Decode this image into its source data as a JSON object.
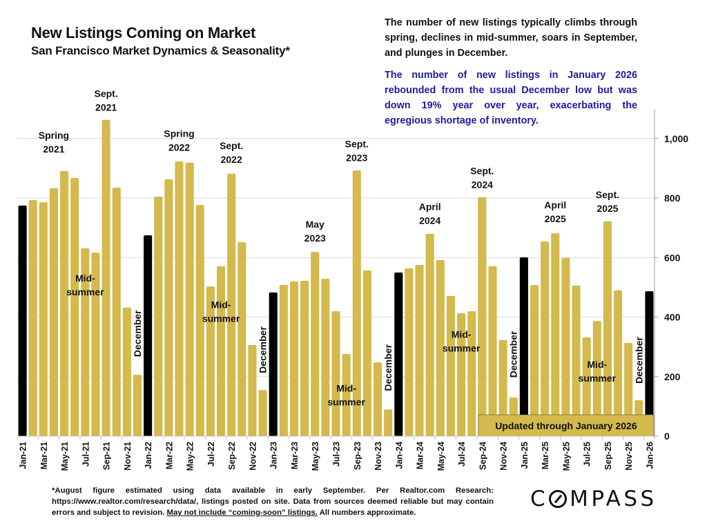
{
  "header": {
    "title": "New Listings Coming on Market",
    "subtitle": "San Francisco Market Dynamics & Seasonality*"
  },
  "notes": {
    "general": "The number of new listings typically climbs through spring, declines in mid-summer, soars in September, and plunges in December.",
    "highlight": "The number of new listings in January 2026 rebounded from the usual December low but was down 19% year over year, exacerbating the egregious shortage of inventory.",
    "highlight_color": "#1c1c9e"
  },
  "footer": {
    "text_before": "*August figure estimated using data available in early September. Per Realtor.com Research: https://www.realtor.com/research/data/, listings posted on site. Data from sources deemed reliable but may contain errors and subject to revision. ",
    "underlined": "May not include “coming-soon” listings.",
    "text_after": " All numbers approximate."
  },
  "logo": {
    "text_before": "C",
    "text_after": "MPASS"
  },
  "chart_data": {
    "type": "bar",
    "title": "New Listings Coming on Market",
    "subtitle": "San Francisco Market Dynamics & Seasonality*",
    "xlabel": "",
    "ylabel": "",
    "ylim": [
      0,
      1100
    ],
    "yticks": [
      0,
      200,
      400,
      600,
      800,
      1000
    ],
    "ytick_labels": [
      "0",
      "200",
      "400",
      "600",
      "800",
      "1,000"
    ],
    "y_axis_side": "right",
    "grid": true,
    "colors": {
      "default": "#d4b94c",
      "january": "#000000"
    },
    "categories": [
      "Jan-21",
      "Feb-21",
      "Mar-21",
      "Apr-21",
      "May-21",
      "Jun-21",
      "Jul-21",
      "Aug-21",
      "Sep-21",
      "Oct-21",
      "Nov-21",
      "Dec-21",
      "Jan-22",
      "Feb-22",
      "Mar-22",
      "Apr-22",
      "May-22",
      "Jun-22",
      "Jul-22",
      "Aug-22",
      "Sep-22",
      "Oct-22",
      "Nov-22",
      "Dec-22",
      "Jan-23",
      "Feb-23",
      "Mar-23",
      "Apr-23",
      "May-23",
      "Jun-23",
      "Jul-23",
      "Aug-23",
      "Sep-23",
      "Oct-23",
      "Nov-23",
      "Dec-23",
      "Jan-24",
      "Feb-24",
      "Mar-24",
      "Apr-24",
      "May-24",
      "Jun-24",
      "Jul-24",
      "Aug-24",
      "Sep-24",
      "Oct-24",
      "Nov-24",
      "Dec-24",
      "Jan-25",
      "Feb-25",
      "Mar-25",
      "Apr-25",
      "May-25",
      "Jun-25",
      "Jul-25",
      "Aug-25",
      "Sep-25",
      "Oct-25",
      "Nov-25",
      "Dec-25",
      "Jan-26"
    ],
    "values": [
      775,
      793,
      786,
      833,
      891,
      868,
      631,
      617,
      1063,
      835,
      432,
      206,
      675,
      805,
      863,
      923,
      919,
      777,
      503,
      571,
      882,
      652,
      306,
      155,
      483,
      508,
      520,
      522,
      619,
      529,
      420,
      276,
      893,
      557,
      248,
      90,
      550,
      564,
      575,
      680,
      592,
      471,
      413,
      420,
      803,
      571,
      323,
      130,
      601,
      508,
      654,
      682,
      599,
      506,
      332,
      387,
      722,
      490,
      313,
      121,
      487
    ],
    "tick_label_every": 2,
    "annotations": [
      {
        "text": [
          "Spring",
          "2021"
        ],
        "at": "Apr-21",
        "value": 1000,
        "rotate": false
      },
      {
        "text": [
          "Sept.",
          "2021"
        ],
        "at": "Sep-21",
        "value": 1140,
        "rotate": false
      },
      {
        "text": [
          "Mid-",
          "summer"
        ],
        "at": "Jul-21",
        "value": 520,
        "rotate": false
      },
      {
        "text": [
          "December"
        ],
        "at": "Dec-21",
        "value": 345,
        "rotate": true
      },
      {
        "text": [
          "Spring",
          "2022"
        ],
        "at": "Apr-22",
        "value": 1005,
        "rotate": false
      },
      {
        "text": [
          "Sept.",
          "2022"
        ],
        "at": "Sep-22",
        "value": 965,
        "rotate": false
      },
      {
        "text": [
          "Mid-",
          "summer"
        ],
        "at": "Aug-22",
        "value": 430,
        "rotate": false
      },
      {
        "text": [
          "December"
        ],
        "at": "Dec-22",
        "value": 290,
        "rotate": true
      },
      {
        "text": [
          "May",
          "2023"
        ],
        "at": "May-23",
        "value": 700,
        "rotate": false
      },
      {
        "text": [
          "Sept.",
          "2023"
        ],
        "at": "Sep-23",
        "value": 970,
        "rotate": false
      },
      {
        "text": [
          "Mid-",
          "summer"
        ],
        "at": "Aug-23",
        "value": 150,
        "rotate": false
      },
      {
        "text": [
          "December"
        ],
        "at": "Dec-23",
        "value": 230,
        "rotate": true
      },
      {
        "text": [
          "April",
          "2024"
        ],
        "at": "Apr-24",
        "value": 760,
        "rotate": false
      },
      {
        "text": [
          "Sept.",
          "2024"
        ],
        "at": "Sep-24",
        "value": 880,
        "rotate": false
      },
      {
        "text": [
          "Mid-",
          "summer"
        ],
        "at": "Jul-24",
        "value": 330,
        "rotate": false
      },
      {
        "text": [
          "December"
        ],
        "at": "Dec-24",
        "value": 275,
        "rotate": true
      },
      {
        "text": [
          "April",
          "2025"
        ],
        "at": "Apr-25",
        "value": 765,
        "rotate": false
      },
      {
        "text": [
          "Sept.",
          "2025"
        ],
        "at": "Sep-25",
        "value": 800,
        "rotate": false
      },
      {
        "text": [
          "Mid-",
          "summer"
        ],
        "at": "Aug-25",
        "value": 230,
        "rotate": false
      },
      {
        "text": [
          "December"
        ],
        "at": "Dec-25",
        "value": 255,
        "rotate": true
      }
    ],
    "banner": "Updated through January 2026"
  }
}
